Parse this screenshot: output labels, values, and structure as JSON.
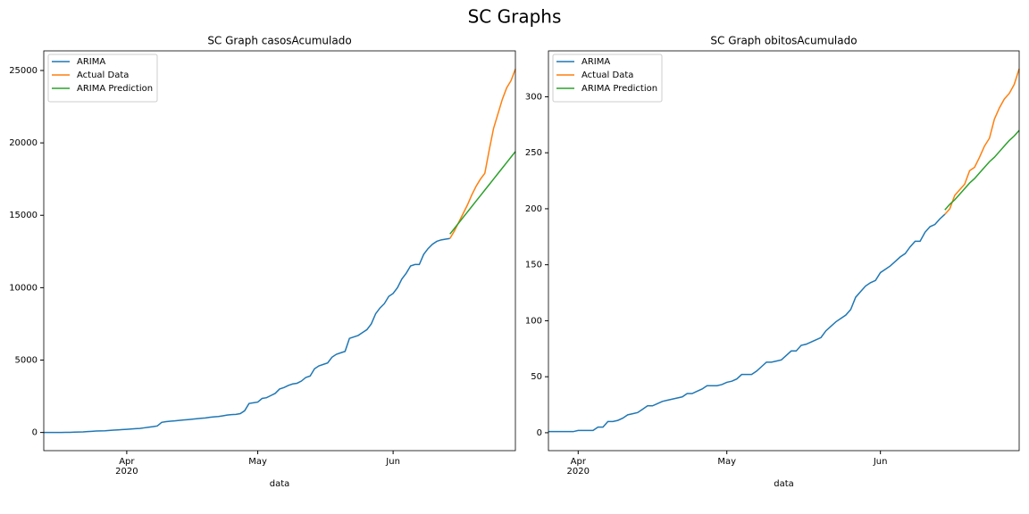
{
  "title": "SC Graphs",
  "chart_data": [
    {
      "type": "line",
      "title": "SC Graph casosAcumulado",
      "xlabel": "data",
      "year_label": "2020",
      "categories": [
        null,
        null,
        null,
        null,
        null,
        null,
        null,
        null,
        null,
        null,
        null,
        null,
        null,
        null,
        null,
        null,
        null,
        null,
        null,
        "Apr",
        null,
        null,
        null,
        null,
        null,
        null,
        null,
        null,
        null,
        null,
        null,
        null,
        null,
        null,
        null,
        null,
        null,
        null,
        null,
        null,
        null,
        null,
        null,
        null,
        null,
        null,
        null,
        null,
        null,
        "May",
        null,
        null,
        null,
        null,
        null,
        null,
        null,
        null,
        null,
        null,
        null,
        null,
        null,
        null,
        null,
        null,
        null,
        null,
        null,
        null,
        null,
        null,
        null,
        null,
        null,
        null,
        null,
        null,
        null,
        null,
        "Jun",
        null,
        null,
        null,
        null,
        null,
        null,
        null,
        null,
        null,
        null,
        null,
        null,
        null,
        null,
        null,
        null,
        null,
        null,
        null,
        null,
        null,
        null,
        null,
        null,
        null,
        null,
        null,
        null
      ],
      "ylim": [
        -1255,
        26355
      ],
      "yticks": [
        0,
        5000,
        10000,
        15000,
        20000,
        25000
      ],
      "legend": "upper left",
      "series": [
        {
          "name": "ARIMA",
          "color": "#1f77b4",
          "values": [
            0,
            0,
            0,
            0,
            0,
            5,
            10,
            20,
            30,
            40,
            60,
            80,
            100,
            110,
            120,
            140,
            160,
            180,
            200,
            220,
            240,
            260,
            280,
            320,
            360,
            400,
            450,
            700,
            750,
            780,
            800,
            830,
            860,
            890,
            920,
            950,
            980,
            1000,
            1050,
            1080,
            1100,
            1150,
            1200,
            1230,
            1250,
            1300,
            1500,
            2000,
            2050,
            2100,
            2350,
            2400,
            2550,
            2700,
            3000,
            3100,
            3250,
            3350,
            3400,
            3550,
            3800,
            3900,
            4400,
            4600,
            4700,
            4800,
            5200,
            5400,
            5500,
            5600,
            6500,
            6600,
            6700,
            6900,
            7100,
            7500,
            8200,
            8600,
            8900,
            9400,
            9600,
            10000,
            10600,
            11000,
            11500,
            11600,
            11600,
            12300,
            12700,
            13000,
            13200,
            13300,
            13350,
            13400,
            null,
            null,
            null,
            null,
            null,
            null,
            null,
            null,
            null,
            null,
            null,
            null,
            null,
            null,
            null
          ]
        },
        {
          "name": "Actual Data",
          "color": "#ff7f0e",
          "values": [
            null,
            null,
            null,
            null,
            null,
            null,
            null,
            null,
            null,
            null,
            null,
            null,
            null,
            null,
            null,
            null,
            null,
            null,
            null,
            null,
            null,
            null,
            null,
            null,
            null,
            null,
            null,
            null,
            null,
            null,
            null,
            null,
            null,
            null,
            null,
            null,
            null,
            null,
            null,
            null,
            null,
            null,
            null,
            null,
            null,
            null,
            null,
            null,
            null,
            null,
            null,
            null,
            null,
            null,
            null,
            null,
            null,
            null,
            null,
            null,
            null,
            null,
            null,
            null,
            null,
            null,
            null,
            null,
            null,
            null,
            null,
            null,
            null,
            null,
            null,
            null,
            null,
            null,
            null,
            null,
            null,
            null,
            null,
            null,
            null,
            null,
            null,
            null,
            null,
            null,
            null,
            null,
            null,
            13400,
            13900,
            14500,
            15100,
            15700,
            16400,
            17000,
            17500,
            17900,
            19500,
            21000,
            22000,
            23000,
            23800,
            24300,
            25100
          ]
        },
        {
          "name": "ARIMA Prediction",
          "color": "#2ca02c",
          "values": [
            null,
            null,
            null,
            null,
            null,
            null,
            null,
            null,
            null,
            null,
            null,
            null,
            null,
            null,
            null,
            null,
            null,
            null,
            null,
            null,
            null,
            null,
            null,
            null,
            null,
            null,
            null,
            null,
            null,
            null,
            null,
            null,
            null,
            null,
            null,
            null,
            null,
            null,
            null,
            null,
            null,
            null,
            null,
            null,
            null,
            null,
            null,
            null,
            null,
            null,
            null,
            null,
            null,
            null,
            null,
            null,
            null,
            null,
            null,
            null,
            null,
            null,
            null,
            null,
            null,
            null,
            null,
            null,
            null,
            null,
            null,
            null,
            null,
            null,
            null,
            null,
            null,
            null,
            null,
            null,
            null,
            null,
            null,
            null,
            null,
            null,
            null,
            null,
            null,
            null,
            null,
            null,
            null,
            13700,
            14080,
            14460,
            14840,
            15220,
            15600,
            15980,
            16360,
            16740,
            17120,
            17500,
            17880,
            18260,
            18640,
            19020,
            19400
          ]
        }
      ]
    },
    {
      "type": "line",
      "title": "SC Graph obitosAcumulado",
      "xlabel": "data",
      "year_label": "2020",
      "categories": [
        null,
        null,
        null,
        null,
        null,
        null,
        "Apr",
        null,
        null,
        null,
        null,
        null,
        null,
        null,
        null,
        null,
        null,
        null,
        null,
        null,
        null,
        null,
        null,
        null,
        null,
        null,
        null,
        null,
        null,
        null,
        null,
        null,
        null,
        null,
        null,
        null,
        "May",
        null,
        null,
        null,
        null,
        null,
        null,
        null,
        null,
        null,
        null,
        null,
        null,
        null,
        null,
        null,
        null,
        null,
        null,
        null,
        null,
        null,
        null,
        null,
        null,
        null,
        null,
        null,
        null,
        null,
        null,
        "Jun",
        null,
        null,
        null,
        null,
        null,
        null,
        null,
        null,
        null,
        null,
        null,
        null,
        null,
        null,
        null,
        null,
        null,
        null,
        null,
        null,
        null,
        null,
        null,
        null,
        null,
        null,
        null,
        null
      ],
      "ylim": [
        -16,
        341
      ],
      "yticks": [
        0,
        50,
        100,
        150,
        200,
        250,
        300
      ],
      "legend": "upper left",
      "series": [
        {
          "name": "ARIMA",
          "color": "#1f77b4",
          "values": [
            1,
            1,
            1,
            1,
            1,
            1,
            2,
            2,
            2,
            2,
            5,
            5,
            10,
            10,
            11,
            13,
            16,
            17,
            18,
            21,
            24,
            24,
            26,
            28,
            29,
            30,
            31,
            32,
            35,
            35,
            37,
            39,
            42,
            42,
            42,
            43,
            45,
            46,
            48,
            52,
            52,
            52,
            55,
            59,
            63,
            63,
            64,
            65,
            69,
            73,
            73,
            78,
            79,
            81,
            83,
            85,
            91,
            95,
            99,
            102,
            105,
            110,
            121,
            126,
            131,
            134,
            136,
            143,
            146,
            149,
            153,
            157,
            160,
            166,
            171,
            171,
            179,
            184,
            186,
            191,
            195,
            null,
            null,
            null,
            null,
            null,
            null,
            null,
            null,
            null,
            null,
            null,
            null,
            null,
            null,
            null
          ]
        },
        {
          "name": "Actual Data",
          "color": "#ff7f0e",
          "values": [
            null,
            null,
            null,
            null,
            null,
            null,
            null,
            null,
            null,
            null,
            null,
            null,
            null,
            null,
            null,
            null,
            null,
            null,
            null,
            null,
            null,
            null,
            null,
            null,
            null,
            null,
            null,
            null,
            null,
            null,
            null,
            null,
            null,
            null,
            null,
            null,
            null,
            null,
            null,
            null,
            null,
            null,
            null,
            null,
            null,
            null,
            null,
            null,
            null,
            null,
            null,
            null,
            null,
            null,
            null,
            null,
            null,
            null,
            null,
            null,
            null,
            null,
            null,
            null,
            null,
            null,
            null,
            null,
            null,
            null,
            null,
            null,
            null,
            null,
            null,
            null,
            null,
            null,
            null,
            null,
            195,
            200,
            212,
            217,
            222,
            234,
            237,
            246,
            256,
            263,
            280,
            290,
            298,
            303,
            311,
            325
          ]
        },
        {
          "name": "ARIMA Prediction",
          "color": "#2ca02c",
          "values": [
            null,
            null,
            null,
            null,
            null,
            null,
            null,
            null,
            null,
            null,
            null,
            null,
            null,
            null,
            null,
            null,
            null,
            null,
            null,
            null,
            null,
            null,
            null,
            null,
            null,
            null,
            null,
            null,
            null,
            null,
            null,
            null,
            null,
            null,
            null,
            null,
            null,
            null,
            null,
            null,
            null,
            null,
            null,
            null,
            null,
            null,
            null,
            null,
            null,
            null,
            null,
            null,
            null,
            null,
            null,
            null,
            null,
            null,
            null,
            null,
            null,
            null,
            null,
            null,
            null,
            null,
            null,
            null,
            null,
            null,
            null,
            null,
            null,
            null,
            null,
            null,
            null,
            null,
            null,
            null,
            199,
            204,
            208,
            213,
            218,
            223,
            227,
            232,
            237,
            242,
            246,
            251,
            256,
            261,
            265,
            270
          ]
        }
      ]
    }
  ]
}
